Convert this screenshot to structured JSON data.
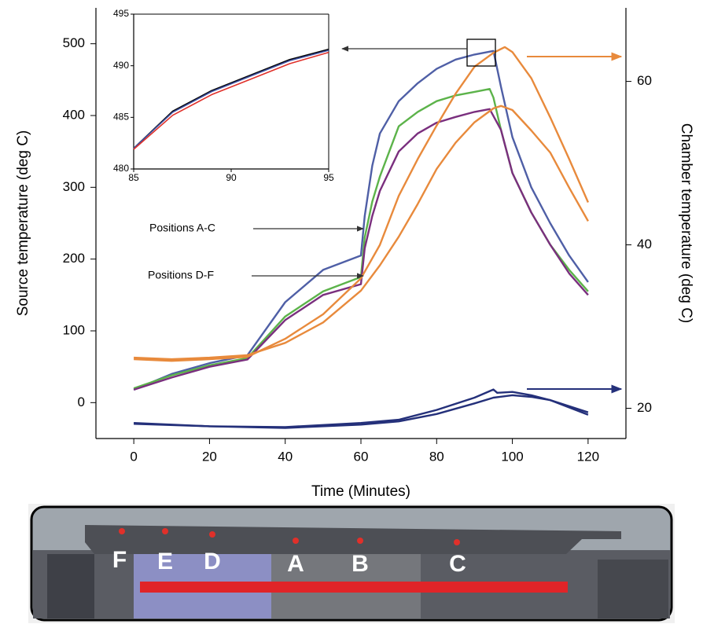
{
  "chart_data": [
    {
      "type": "line",
      "xlabel": "Time (Minutes)",
      "ylabel": "Source temperature (deg C)",
      "y2label": "Chamber temperature (deg C)",
      "xlim": [
        -10,
        130
      ],
      "ylim": [
        -50,
        550
      ],
      "y2lim": [
        16.3,
        69
      ],
      "xticks": [
        0,
        20,
        40,
        60,
        80,
        100,
        120
      ],
      "yticks": [
        0,
        100,
        200,
        300,
        400,
        500
      ],
      "y2ticks": [
        20,
        40,
        60
      ],
      "annotations": [
        "Positions A-C",
        "Positions D-F"
      ],
      "series": [
        {
          "color": "#4f5fa6",
          "x": [
            0,
            10,
            20,
            30,
            40,
            50,
            60,
            61,
            63,
            65,
            70,
            75,
            80,
            85,
            90,
            95,
            97,
            100,
            105,
            110,
            115,
            120
          ],
          "values": [
            18,
            40,
            55,
            66,
            140,
            185,
            205,
            260,
            330,
            375,
            420,
            445,
            465,
            478,
            485,
            490,
            440,
            370,
            300,
            250,
            205,
            168
          ]
        },
        {
          "color": "#5cb34a",
          "x": [
            0,
            10,
            20,
            30,
            40,
            50,
            60,
            61,
            63,
            65,
            70,
            75,
            80,
            85,
            90,
            94,
            95,
            97,
            100,
            105,
            110,
            115,
            120
          ],
          "values": [
            20,
            38,
            52,
            62,
            120,
            155,
            175,
            230,
            280,
            315,
            385,
            405,
            420,
            428,
            433,
            437,
            425,
            380,
            320,
            265,
            220,
            185,
            155
          ]
        },
        {
          "color": "#7a2f7e",
          "x": [
            0,
            10,
            20,
            30,
            40,
            50,
            60,
            61,
            63,
            65,
            70,
            75,
            80,
            85,
            90,
            94,
            97,
            100,
            105,
            110,
            115,
            120
          ],
          "values": [
            18,
            35,
            50,
            60,
            115,
            150,
            165,
            215,
            260,
            295,
            350,
            375,
            390,
            398,
            405,
            409,
            380,
            320,
            265,
            220,
            180,
            150
          ]
        },
        {
          "color": "#e88a3c",
          "axis": "y2",
          "x": [
            0,
            10,
            20,
            30,
            40,
            50,
            60,
            65,
            70,
            75,
            80,
            85,
            90,
            95,
            98,
            100,
            105,
            110,
            115,
            120
          ],
          "values": [
            26,
            25.8,
            26,
            26.3,
            28.5,
            31.5,
            35.9,
            40,
            46,
            50.5,
            54.6,
            58.5,
            61.8,
            63.5,
            64.2,
            63.6,
            60.4,
            55.6,
            50.5,
            45.2
          ]
        },
        {
          "color": "#e88a3c",
          "axis": "y2",
          "x": [
            0,
            10,
            20,
            30,
            40,
            50,
            60,
            65,
            70,
            75,
            80,
            85,
            90,
            95,
            97,
            100,
            105,
            110,
            115,
            120
          ],
          "values": [
            26.2,
            26,
            26.2,
            26.5,
            28,
            30.5,
            34.4,
            37.5,
            41,
            45,
            49.3,
            52.5,
            55,
            56.7,
            57,
            56.5,
            54,
            51.3,
            47,
            42.9
          ]
        },
        {
          "color": "#24307a",
          "axis": "y2",
          "x": [
            0,
            20,
            40,
            60,
            70,
            80,
            90,
            95,
            96,
            100,
            105,
            110,
            120
          ],
          "values": [
            18.2,
            17.8,
            17.7,
            18.2,
            18.6,
            19.8,
            21.3,
            22.3,
            21.9,
            22,
            21.6,
            21,
            19.5
          ]
        },
        {
          "color": "#24307a",
          "axis": "y2",
          "x": [
            0,
            20,
            40,
            60,
            70,
            80,
            90,
            95,
            100,
            105,
            110,
            120
          ],
          "values": [
            18.1,
            17.8,
            17.6,
            18,
            18.4,
            19.3,
            20.6,
            21.3,
            21.6,
            21.4,
            21,
            19.2
          ]
        }
      ]
    },
    {
      "type": "line",
      "xlim": [
        85,
        95
      ],
      "ylim": [
        480,
        495
      ],
      "xticks": [
        85,
        90,
        95
      ],
      "yticks": [
        480,
        485,
        490,
        495
      ],
      "series": [
        {
          "color": "#000000",
          "x": [
            85,
            87,
            89,
            91,
            93,
            95
          ],
          "values": [
            482,
            485.6,
            487.6,
            489.1,
            490.6,
            491.6
          ]
        },
        {
          "color": "#3d4fa0",
          "x": [
            85,
            87,
            89,
            91,
            93,
            95
          ],
          "values": [
            482,
            485.5,
            487.5,
            489,
            490.5,
            491.5
          ]
        },
        {
          "color": "#e0302a",
          "x": [
            85,
            87,
            89,
            91,
            93,
            95
          ],
          "values": [
            481.9,
            485.2,
            487.2,
            488.7,
            490.2,
            491.3
          ]
        }
      ]
    }
  ],
  "illustration": {
    "labels": [
      "F",
      "E",
      "D",
      "A",
      "B",
      "C"
    ]
  }
}
